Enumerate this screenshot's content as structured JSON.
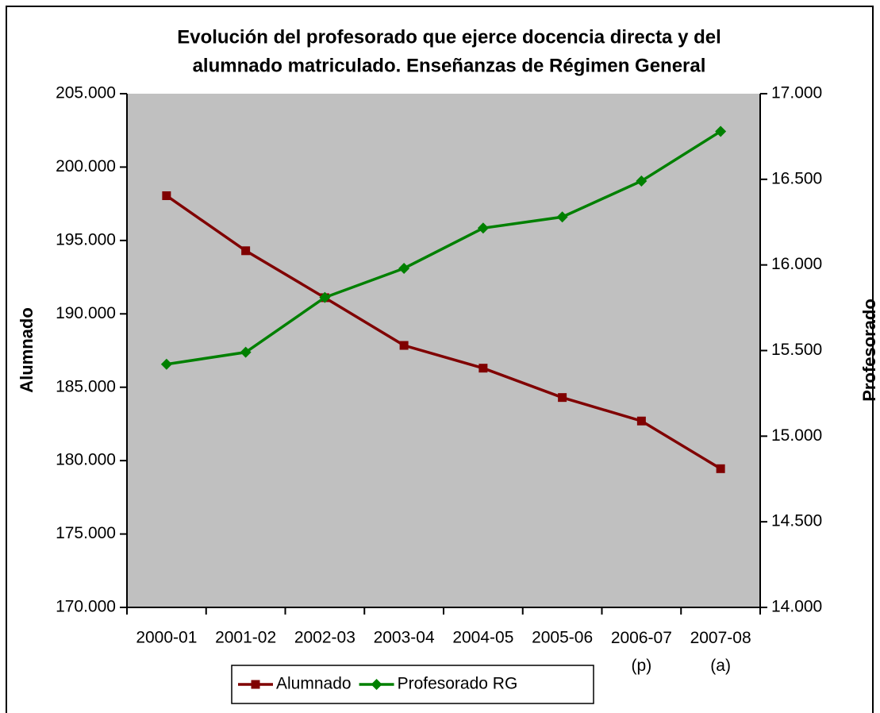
{
  "chart_data": {
    "type": "line",
    "title": [
      "Evolución del profesorado que ejerce docencia directa y del",
      "alumnado matriculado. Enseñanzas de Régimen General"
    ],
    "y_label": "Alumnado",
    "y2_label": "Profesorado",
    "categories": [
      "2000-01",
      "2001-02",
      "2002-03",
      "2003-04",
      "2004-05",
      "2005-06",
      "2006-07 (p)",
      "2007-08 (a)"
    ],
    "series": [
      {
        "name": "Alumnado",
        "color": "#800000",
        "marker": "square",
        "values": [
          198050,
          194300,
          191100,
          187850,
          186300,
          184300,
          182700,
          179450
        ]
      },
      {
        "name": "Profesorado RG",
        "color": "#008000",
        "marker": "diamond",
        "axis": "y2",
        "values": [
          15420,
          15490,
          15810,
          15980,
          16215,
          16280,
          16490,
          16780
        ]
      }
    ],
    "ylim": [
      170000,
      205000
    ],
    "yticks": [
      {
        "value": 170000,
        "label": "170.000"
      },
      {
        "value": 175000,
        "label": "175.000"
      },
      {
        "value": 180000,
        "label": "180.000"
      },
      {
        "value": 185000,
        "label": "185.000"
      },
      {
        "value": 190000,
        "label": "190.000"
      },
      {
        "value": 195000,
        "label": "195.000"
      },
      {
        "value": 200000,
        "label": "200.000"
      },
      {
        "value": 205000,
        "label": "205.000"
      }
    ],
    "y2lim": [
      14000,
      17000
    ],
    "y2ticks": [
      {
        "value": 14000,
        "label": "14.000"
      },
      {
        "value": 14500,
        "label": "14.500"
      },
      {
        "value": 15000,
        "label": "15.000"
      },
      {
        "value": 15500,
        "label": "15.500"
      },
      {
        "value": 16000,
        "label": "16.000"
      },
      {
        "value": 16500,
        "label": "16.500"
      },
      {
        "value": 17000,
        "label": "17.000"
      }
    ],
    "plot_background": "#c0c0c0",
    "legend": "bottom"
  }
}
